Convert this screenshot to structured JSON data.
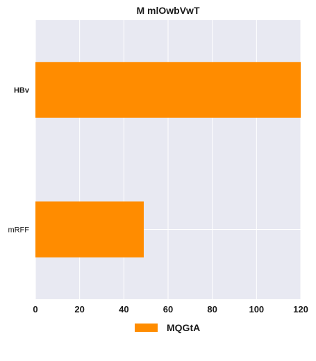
{
  "chart_data": {
    "type": "bar",
    "orientation": "horizontal",
    "title": "M mlOwbVwT",
    "categories": [
      "HBv",
      "mRFF"
    ],
    "series": [
      {
        "name": "MQGtA",
        "values": [
          120,
          49
        ],
        "color": "#ff8c00"
      }
    ],
    "xlim": [
      0,
      120
    ],
    "xticks": [
      0,
      20,
      40,
      60,
      80,
      100,
      120
    ],
    "xlabel": "",
    "ylabel": "",
    "grid": true,
    "legend_position": "bottom-center",
    "plot_background": "#e8e9f2",
    "grid_color": "#ffffff"
  }
}
